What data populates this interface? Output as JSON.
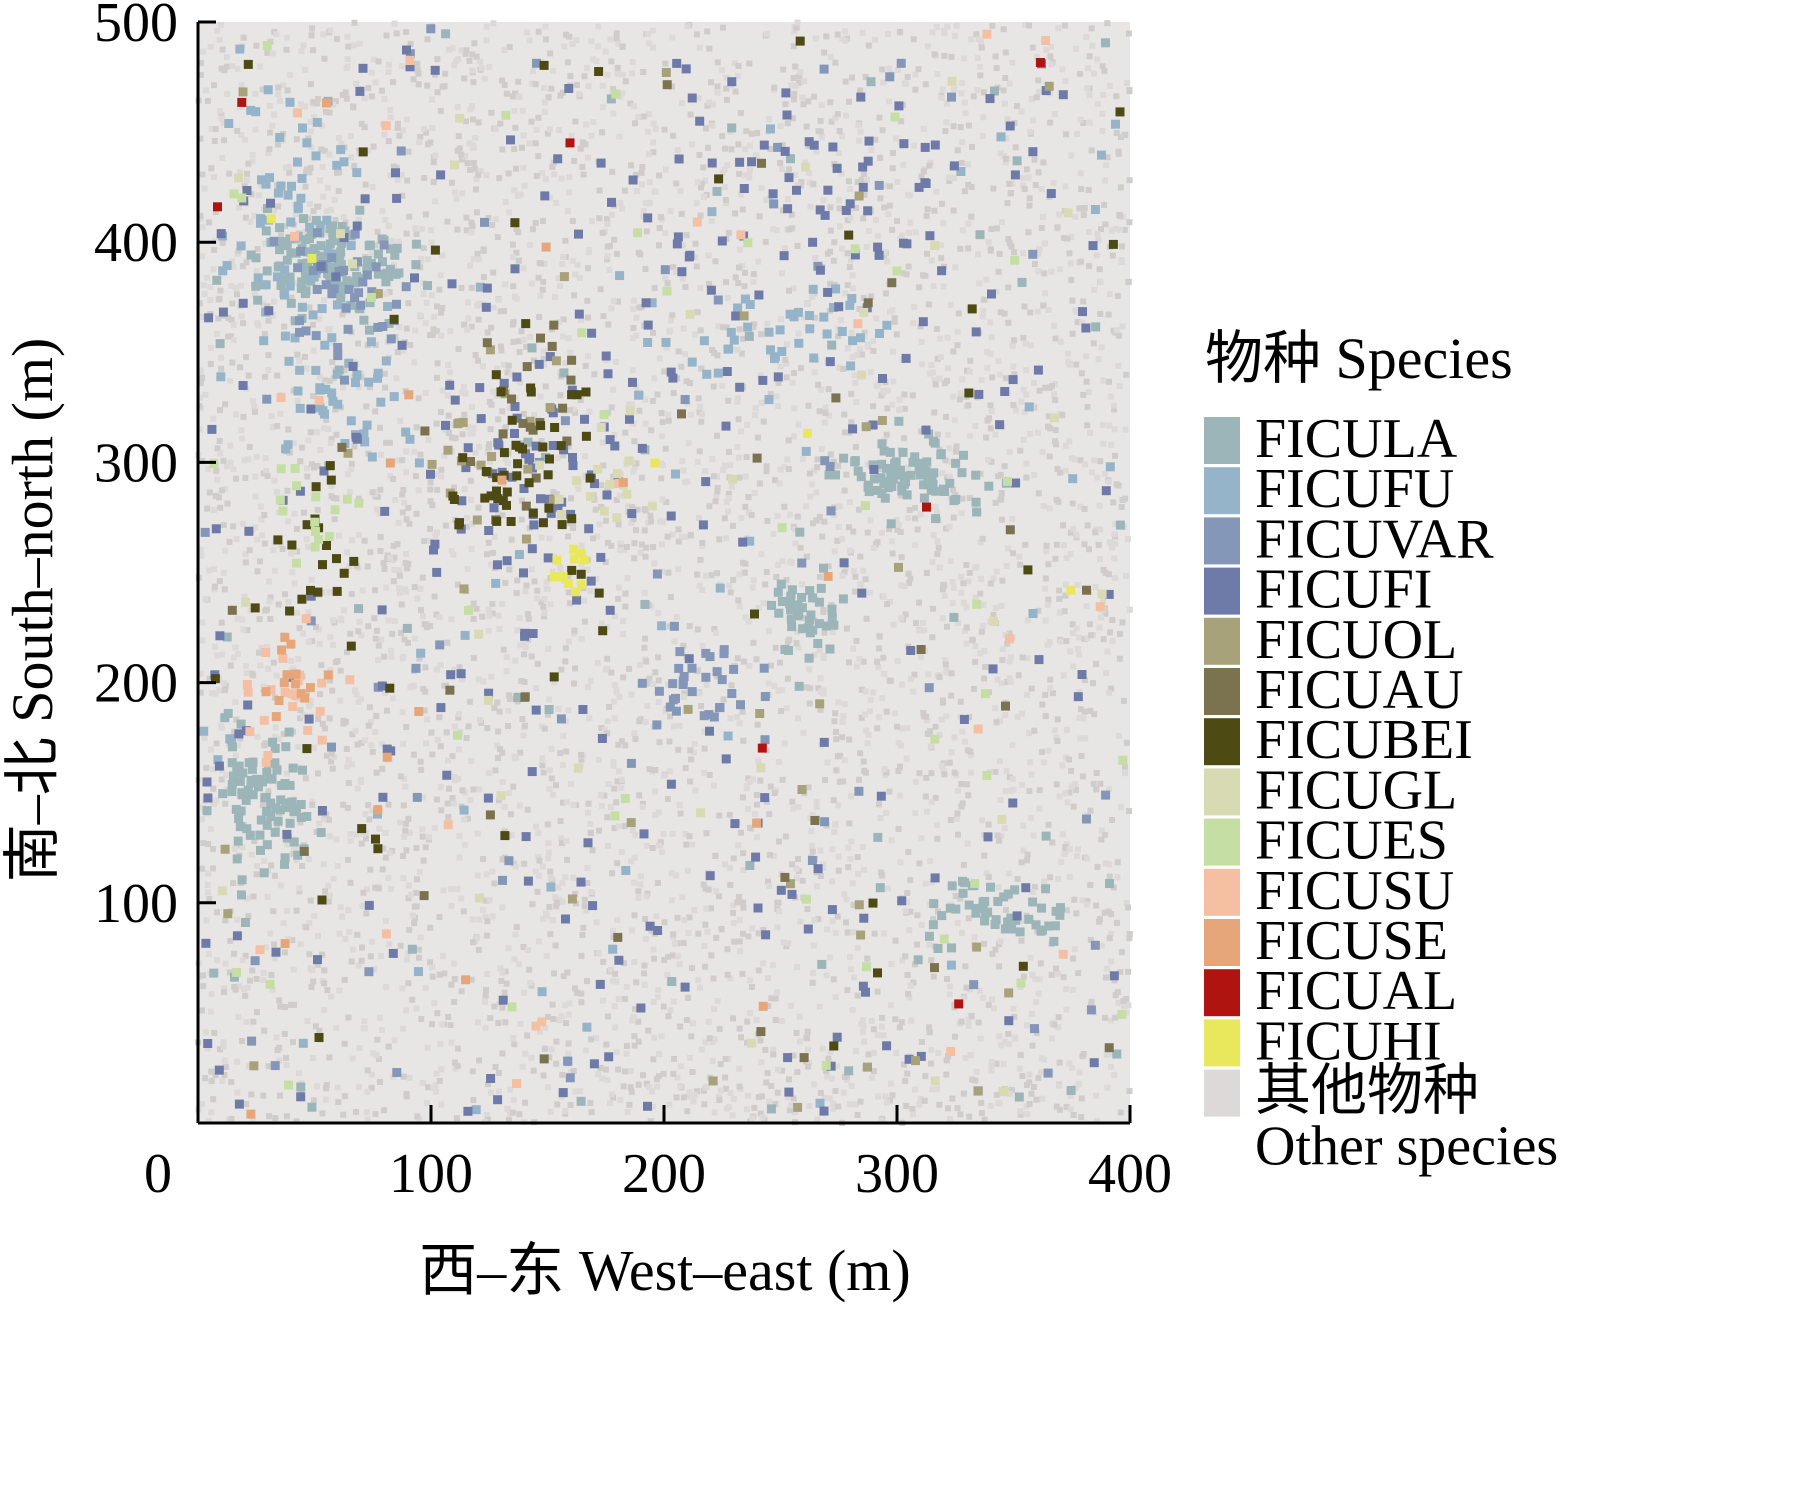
{
  "chart_data": {
    "type": "scatter",
    "title": "",
    "xlabel": "西–东 West–east (m)",
    "ylabel": "南–北 South–north (m)",
    "xlim": [
      0,
      400
    ],
    "ylim": [
      0,
      500
    ],
    "xticks": [
      "0",
      "100",
      "200",
      "300",
      "400"
    ],
    "yticks": [
      "100",
      "200",
      "300",
      "400",
      "500"
    ],
    "legend_position": "right",
    "legend_title": "物种 Species",
    "series": [
      {
        "name": "FICULA",
        "color": "#9bb5b8",
        "clusters": [
          [
            30,
            150,
            14,
            25,
            90
          ],
          [
            60,
            390,
            22,
            15,
            120
          ],
          [
            305,
            295,
            20,
            12,
            80
          ],
          [
            340,
            95,
            25,
            10,
            50
          ],
          [
            260,
            230,
            10,
            12,
            40
          ]
        ],
        "scattered": 60
      },
      {
        "name": "FICUFU",
        "color": "#95b3c9",
        "clusters": [
          [
            40,
            420,
            20,
            40,
            60
          ],
          [
            60,
            330,
            20,
            20,
            40
          ],
          [
            250,
            360,
            30,
            15,
            40
          ]
        ],
        "scattered": 50
      },
      {
        "name": "FICUVAR",
        "color": "#8497b8",
        "clusters": [
          [
            60,
            380,
            20,
            25,
            40
          ],
          [
            220,
            200,
            20,
            15,
            30
          ]
        ],
        "scattered": 60
      },
      {
        "name": "FICUFI",
        "color": "#6e7aa8",
        "clusters": [
          [
            150,
            300,
            30,
            40,
            60
          ],
          [
            260,
            420,
            50,
            40,
            50
          ]
        ],
        "scattered": 230
      },
      {
        "name": "FICUOL",
        "color": "#a8a27a",
        "clusters": [
          [
            120,
            300,
            30,
            30,
            15
          ]
        ],
        "scattered": 35
      },
      {
        "name": "FICUAU",
        "color": "#7b7250",
        "clusters": [
          [
            140,
            320,
            20,
            30,
            20
          ]
        ],
        "scattered": 30
      },
      {
        "name": "FICUBEI",
        "color": "#4e4a13",
        "clusters": [
          [
            140,
            300,
            20,
            35,
            45
          ],
          [
            50,
            260,
            15,
            30,
            20
          ]
        ],
        "scattered": 35
      },
      {
        "name": "FICUGL",
        "color": "#d8dab4",
        "clusters": [
          [
            170,
            290,
            15,
            20,
            15
          ]
        ],
        "scattered": 30
      },
      {
        "name": "FICUES",
        "color": "#c5dea3",
        "clusters": [
          [
            50,
            270,
            15,
            25,
            15
          ]
        ],
        "scattered": 40
      },
      {
        "name": "FICUSU",
        "color": "#f4bfa3",
        "clusters": [
          [
            40,
            190,
            15,
            20,
            20
          ]
        ],
        "scattered": 25
      },
      {
        "name": "FICUSE",
        "color": "#e6a679",
        "clusters": [
          [
            40,
            200,
            10,
            15,
            15
          ]
        ],
        "scattered": 15
      },
      {
        "name": "FICUAL",
        "color": "#b01410",
        "clusters": [],
        "scattered": 7
      },
      {
        "name": "FICUHI",
        "color": "#e9e85c",
        "clusters": [
          [
            160,
            250,
            6,
            10,
            10
          ]
        ],
        "scattered": 5
      },
      {
        "name": "其他物种 Other species",
        "color": "#dcd9d8",
        "background": true
      }
    ]
  },
  "legend": {
    "title": "物种 Species",
    "items": [
      {
        "label": "FICULA",
        "color": "#9bb5b8"
      },
      {
        "label": "FICUFU",
        "color": "#95b3c9"
      },
      {
        "label": "FICUVAR",
        "color": "#8497b8"
      },
      {
        "label": "FICUFI",
        "color": "#6e7aa8"
      },
      {
        "label": "FICUOL",
        "color": "#a8a27a"
      },
      {
        "label": "FICUAU",
        "color": "#7b7250"
      },
      {
        "label": "FICUBEI",
        "color": "#4e4a13"
      },
      {
        "label": "FICUGL",
        "color": "#d8dab4"
      },
      {
        "label": "FICUES",
        "color": "#c5dea3"
      },
      {
        "label": "FICUSU",
        "color": "#f4bfa3"
      },
      {
        "label": "FICUSE",
        "color": "#e6a679"
      },
      {
        "label": "FICUAL",
        "color": "#b01410"
      },
      {
        "label": "FICUHI",
        "color": "#e9e85c"
      },
      {
        "label": "其他物种",
        "label2": "Other species",
        "color": "#dcd9d8"
      }
    ]
  }
}
